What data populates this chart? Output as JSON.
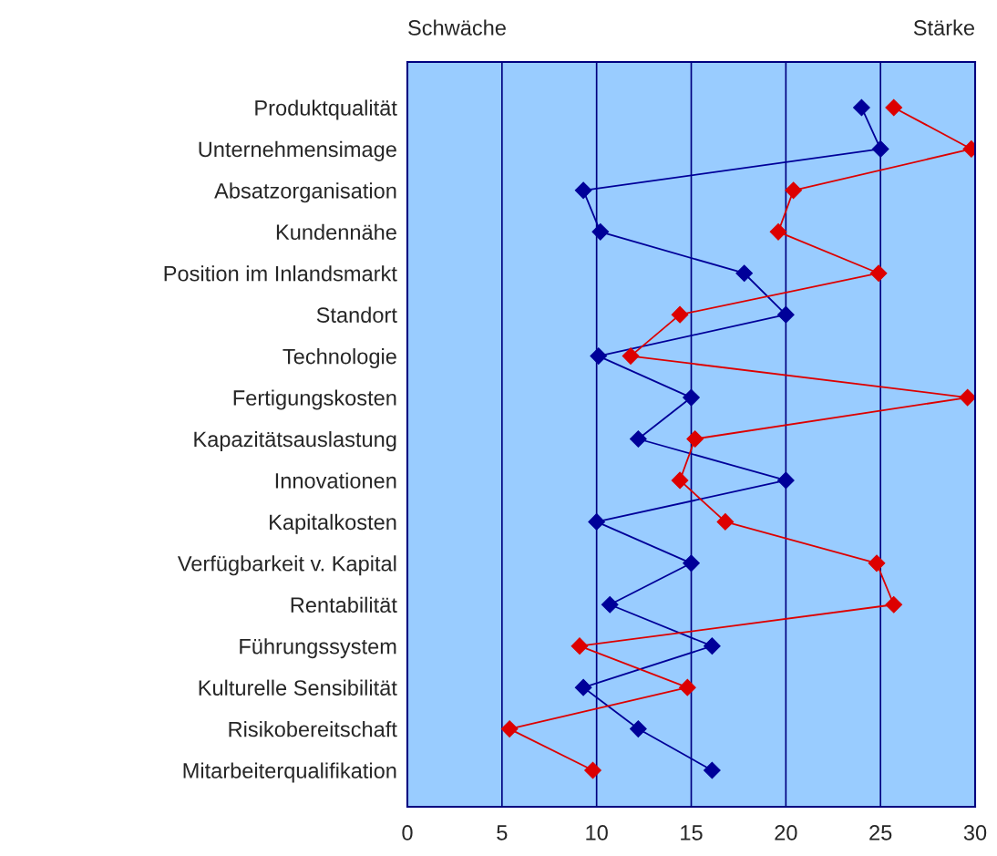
{
  "chart_data": {
    "type": "line",
    "orientation": "horizontal",
    "categories": [
      "Produktqualität",
      "Unternehmensimage",
      "Absatzorganisation",
      "Kundennähe",
      "Position im Inlandsmarkt",
      "Standort",
      "Technologie",
      "Fertigungskosten",
      "Kapazitätsauslastung",
      "Innovationen",
      "Kapitalkosten",
      "Verfügbarkeit v. Kapital",
      "Rentabilität",
      "Führungssystem",
      "Kulturelle Sensibilität",
      "Risikobereitschaft",
      "Mitarbeiterqualifikation"
    ],
    "series": [
      {
        "color": "#000099",
        "values": [
          24,
          25,
          9.3,
          10.2,
          17.8,
          20,
          10.1,
          15,
          12.2,
          20,
          10,
          15,
          10.7,
          16.1,
          9.3,
          12.2,
          16.1
        ]
      },
      {
        "color": "#dd0000",
        "values": [
          25.7,
          29.8,
          20.4,
          19.6,
          24.9,
          14.4,
          11.8,
          29.6,
          15.2,
          14.4,
          16.8,
          24.8,
          25.7,
          9.1,
          14.8,
          5.4,
          9.8
        ]
      }
    ],
    "xlim": [
      0,
      30
    ],
    "xticks": [
      0,
      5,
      10,
      15,
      20,
      25,
      30
    ],
    "grid": "x",
    "marker": "diamond",
    "line_style": "solid",
    "annotations": [
      "Schwäche",
      "Stärke"
    ]
  }
}
